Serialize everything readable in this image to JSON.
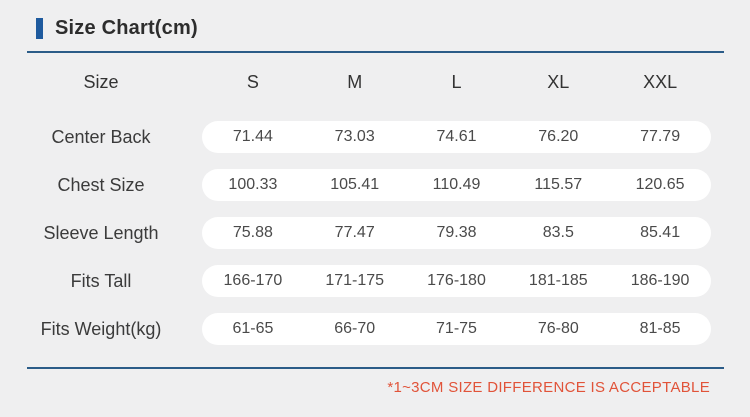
{
  "title": "Size Chart(cm)",
  "colors": {
    "accent_bar": "#1e5a9e",
    "divider_rule": "#2b5c88",
    "note_text": "#e15339",
    "page_background": "#efeff0",
    "pill_background": "#ffffff"
  },
  "chart_data": {
    "type": "table",
    "title": "Size Chart(cm)",
    "columns": [
      "Size",
      "S",
      "M",
      "L",
      "XL",
      "XXL"
    ],
    "rows": [
      {
        "label": "Center Back",
        "values": [
          "71.44",
          "73.03",
          "74.61",
          "76.20",
          "77.79"
        ]
      },
      {
        "label": "Chest Size",
        "values": [
          "100.33",
          "105.41",
          "110.49",
          "115.57",
          "120.65"
        ]
      },
      {
        "label": "Sleeve Length",
        "values": [
          "75.88",
          "77.47",
          "79.38",
          "83.5",
          "85.41"
        ]
      },
      {
        "label": "Fits Tall",
        "values": [
          "166-170",
          "171-175",
          "176-180",
          "181-185",
          "186-190"
        ]
      },
      {
        "label": "Fits Weight(kg)",
        "values": [
          "61-65",
          "66-70",
          "71-75",
          "76-80",
          "81-85"
        ]
      }
    ]
  },
  "note": "*1~3CM SIZE DIFFERENCE IS ACCEPTABLE"
}
